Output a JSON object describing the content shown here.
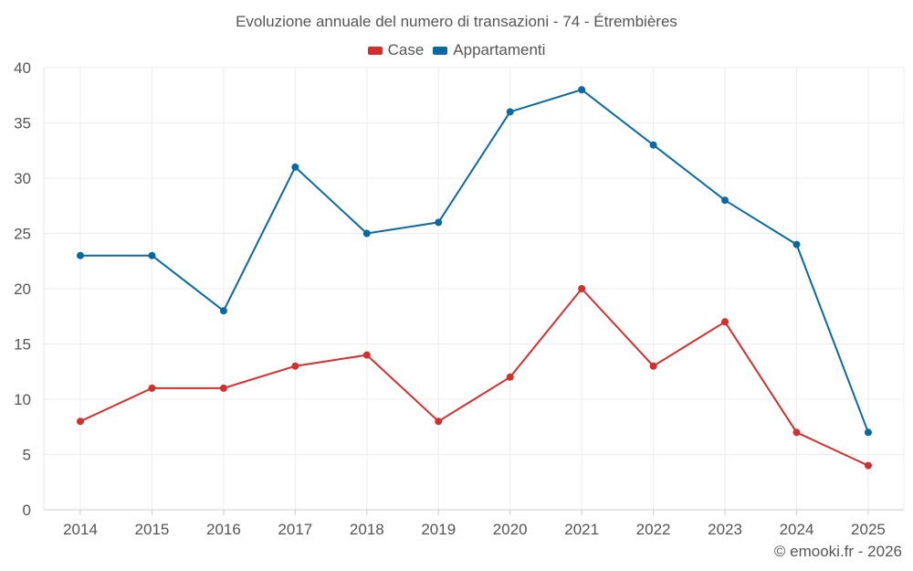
{
  "chart_data": {
    "type": "line",
    "title": "Evoluzione annuale del numero di transazioni - 74 - Étrembières",
    "categories": [
      "2014",
      "2015",
      "2016",
      "2017",
      "2018",
      "2019",
      "2020",
      "2021",
      "2022",
      "2023",
      "2024",
      "2025"
    ],
    "series": [
      {
        "name": "Case",
        "color": "#d32f2f",
        "values": [
          8,
          11,
          11,
          13,
          14,
          8,
          12,
          20,
          13,
          17,
          7,
          4
        ]
      },
      {
        "name": "Appartamenti",
        "color": "#0a69a3",
        "values": [
          23,
          23,
          18,
          31,
          25,
          26,
          36,
          38,
          33,
          28,
          24,
          7
        ]
      }
    ],
    "ylim": [
      0,
      40
    ],
    "yticks": [
      0,
      5,
      10,
      15,
      20,
      25,
      30,
      35,
      40
    ],
    "grid": true,
    "legend_position": "top-center",
    "xlabel": "",
    "ylabel": ""
  },
  "credit": "© emooki.fr - 2026"
}
